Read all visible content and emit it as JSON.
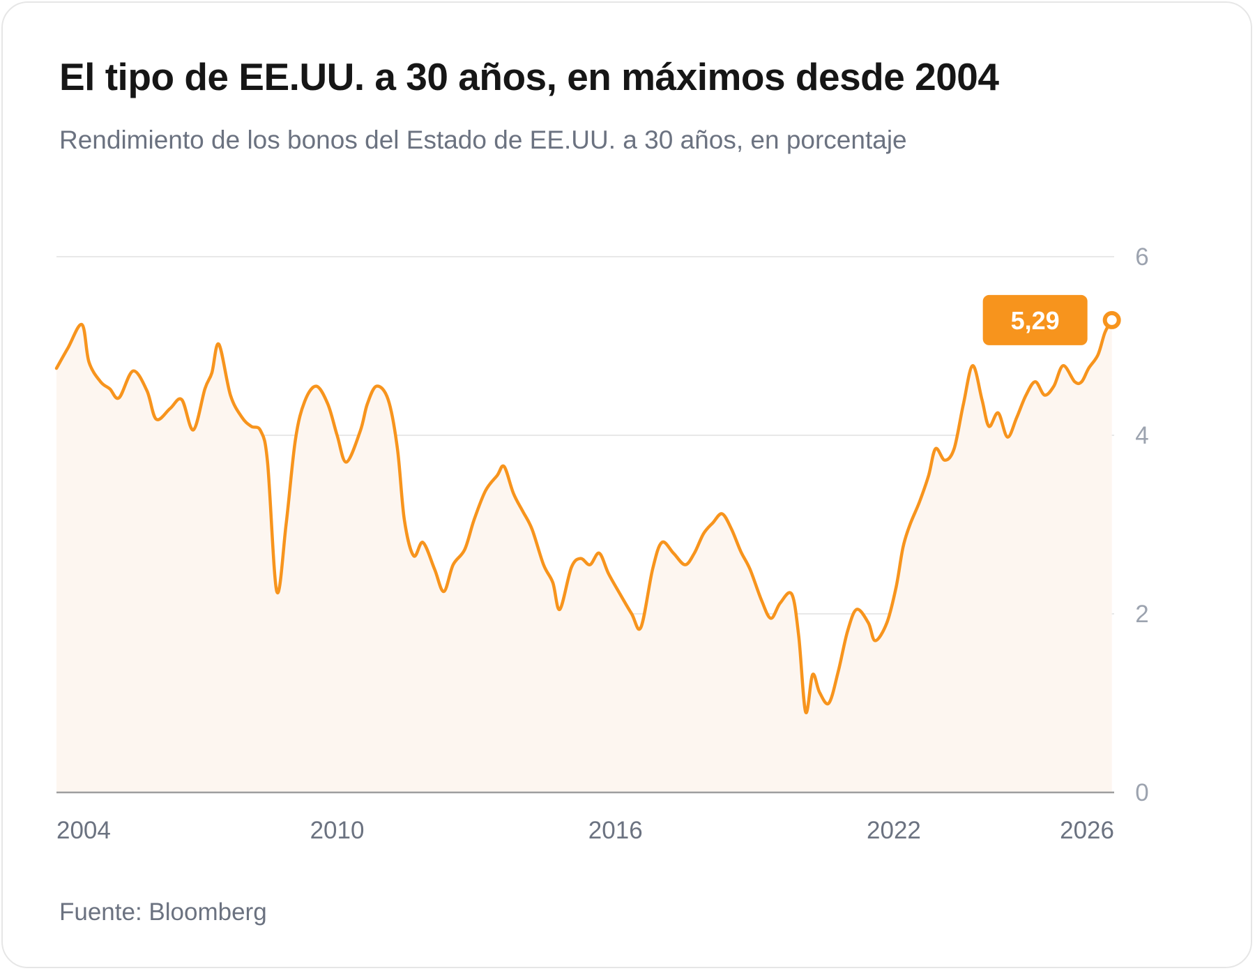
{
  "header": {
    "title": "El tipo de EE.UU. a 30 años, en máximos desde 2004",
    "subtitle": "Rendimiento de los bonos del Estado de EE.UU. a 30 años, en porcentaje"
  },
  "footer": {
    "source": "Fuente: Bloomberg"
  },
  "colors": {
    "line": "#f7941d",
    "area": "#fdf6f0",
    "grid": "#e8e8e8",
    "axis": "#9e9e9e",
    "badge": "#f7941d"
  },
  "chart_data": {
    "type": "line",
    "title": "El tipo de EE.UU. a 30 años, en máximos desde 2004",
    "subtitle": "Rendimiento de los bonos del Estado de EE.UU. a 30 años, en porcentaje",
    "xlabel": "",
    "ylabel": "",
    "xlim": [
      2003.95,
      2026.75
    ],
    "ylim": [
      0,
      6
    ],
    "x_ticks": [
      2004,
      2010,
      2016,
      2022,
      2026
    ],
    "x_tick_labels": [
      "2004",
      "2010",
      "2016",
      "2022",
      "2026"
    ],
    "y_ticks": [
      0,
      2,
      4,
      6
    ],
    "y_tick_labels": [
      "0",
      "2",
      "4",
      "6"
    ],
    "y_axis_side": "right",
    "grid": true,
    "area_fill": true,
    "last_value_label": "5,29",
    "series": [
      {
        "values": [
          [
            2003.95,
            4.75
          ],
          [
            2004.2,
            4.98
          ],
          [
            2004.5,
            5.24
          ],
          [
            2004.65,
            4.82
          ],
          [
            2004.9,
            4.6
          ],
          [
            2005.1,
            4.52
          ],
          [
            2005.3,
            4.42
          ],
          [
            2005.6,
            4.72
          ],
          [
            2005.9,
            4.5
          ],
          [
            2006.1,
            4.18
          ],
          [
            2006.4,
            4.3
          ],
          [
            2006.65,
            4.4
          ],
          [
            2006.9,
            4.06
          ],
          [
            2007.15,
            4.52
          ],
          [
            2007.3,
            4.7
          ],
          [
            2007.45,
            5.02
          ],
          [
            2007.7,
            4.45
          ],
          [
            2007.95,
            4.2
          ],
          [
            2008.15,
            4.1
          ],
          [
            2008.35,
            4.05
          ],
          [
            2008.5,
            3.7
          ],
          [
            2008.7,
            2.25
          ],
          [
            2008.9,
            3.0
          ],
          [
            2009.1,
            3.95
          ],
          [
            2009.3,
            4.38
          ],
          [
            2009.55,
            4.55
          ],
          [
            2009.8,
            4.35
          ],
          [
            2010.0,
            4.0
          ],
          [
            2010.2,
            3.7
          ],
          [
            2010.5,
            4.05
          ],
          [
            2010.65,
            4.35
          ],
          [
            2010.85,
            4.55
          ],
          [
            2011.1,
            4.4
          ],
          [
            2011.3,
            3.85
          ],
          [
            2011.45,
            3.05
          ],
          [
            2011.65,
            2.65
          ],
          [
            2011.85,
            2.8
          ],
          [
            2012.1,
            2.5
          ],
          [
            2012.3,
            2.25
          ],
          [
            2012.5,
            2.55
          ],
          [
            2012.75,
            2.72
          ],
          [
            2012.95,
            3.05
          ],
          [
            2013.2,
            3.38
          ],
          [
            2013.45,
            3.55
          ],
          [
            2013.6,
            3.65
          ],
          [
            2013.8,
            3.35
          ],
          [
            2014.0,
            3.15
          ],
          [
            2014.2,
            2.95
          ],
          [
            2014.45,
            2.55
          ],
          [
            2014.65,
            2.35
          ],
          [
            2014.8,
            2.05
          ],
          [
            2015.05,
            2.52
          ],
          [
            2015.25,
            2.62
          ],
          [
            2015.45,
            2.55
          ],
          [
            2015.65,
            2.68
          ],
          [
            2015.85,
            2.45
          ],
          [
            2016.1,
            2.22
          ],
          [
            2016.35,
            2.0
          ],
          [
            2016.55,
            1.85
          ],
          [
            2016.8,
            2.5
          ],
          [
            2017.0,
            2.8
          ],
          [
            2017.25,
            2.68
          ],
          [
            2017.5,
            2.55
          ],
          [
            2017.7,
            2.68
          ],
          [
            2017.9,
            2.9
          ],
          [
            2018.1,
            3.02
          ],
          [
            2018.3,
            3.12
          ],
          [
            2018.5,
            2.95
          ],
          [
            2018.7,
            2.7
          ],
          [
            2018.9,
            2.5
          ],
          [
            2019.15,
            2.15
          ],
          [
            2019.35,
            1.95
          ],
          [
            2019.55,
            2.12
          ],
          [
            2019.8,
            2.22
          ],
          [
            2019.95,
            1.75
          ],
          [
            2020.1,
            0.9
          ],
          [
            2020.25,
            1.32
          ],
          [
            2020.4,
            1.12
          ],
          [
            2020.6,
            1.0
          ],
          [
            2020.8,
            1.35
          ],
          [
            2021.0,
            1.8
          ],
          [
            2021.2,
            2.05
          ],
          [
            2021.45,
            1.9
          ],
          [
            2021.6,
            1.7
          ],
          [
            2021.85,
            1.9
          ],
          [
            2022.05,
            2.3
          ],
          [
            2022.2,
            2.75
          ],
          [
            2022.35,
            3.0
          ],
          [
            2022.55,
            3.25
          ],
          [
            2022.75,
            3.55
          ],
          [
            2022.9,
            3.85
          ],
          [
            2023.1,
            3.72
          ],
          [
            2023.3,
            3.85
          ],
          [
            2023.5,
            4.35
          ],
          [
            2023.7,
            4.78
          ],
          [
            2023.9,
            4.4
          ],
          [
            2024.05,
            4.1
          ],
          [
            2024.25,
            4.25
          ],
          [
            2024.45,
            3.98
          ],
          [
            2024.65,
            4.2
          ],
          [
            2024.85,
            4.45
          ],
          [
            2025.05,
            4.6
          ],
          [
            2025.25,
            4.45
          ],
          [
            2025.45,
            4.55
          ],
          [
            2025.65,
            4.78
          ],
          [
            2025.9,
            4.6
          ],
          [
            2026.05,
            4.6
          ],
          [
            2026.2,
            4.75
          ],
          [
            2026.4,
            4.9
          ],
          [
            2026.55,
            5.15
          ],
          [
            2026.7,
            5.29
          ]
        ]
      }
    ]
  }
}
